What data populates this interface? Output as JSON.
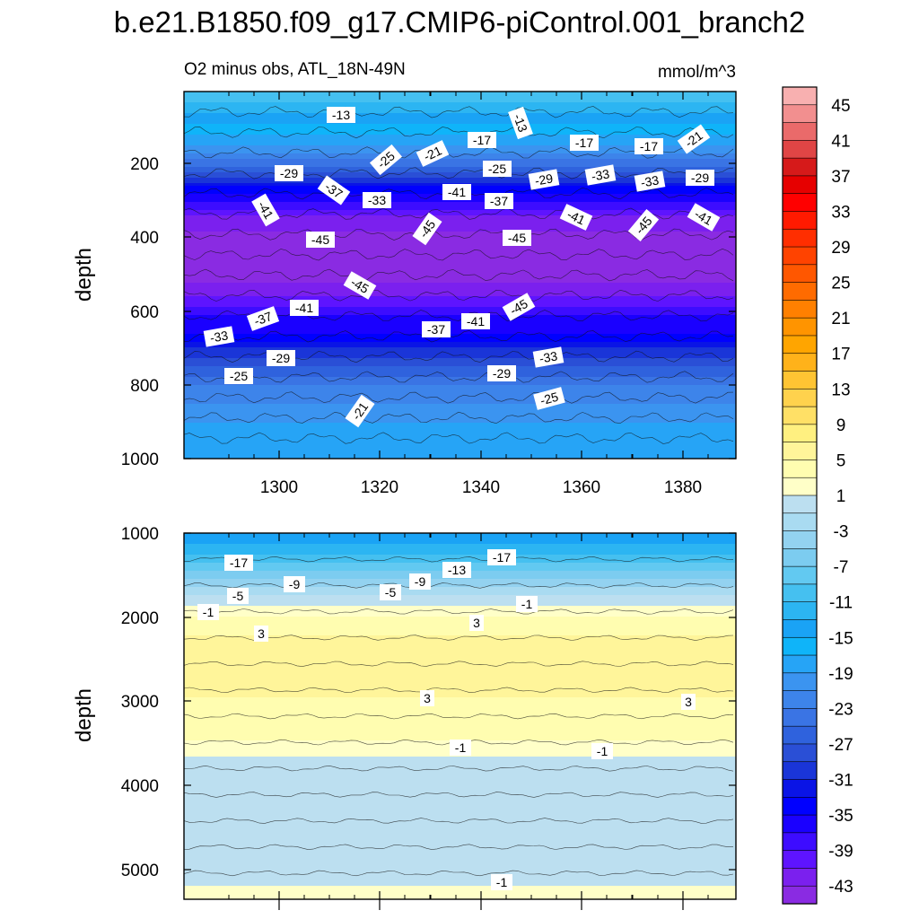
{
  "chart_data": {
    "type": "heatmap",
    "title": "b.e21.B1850.f09_g17.CMIP6-piControl.001_branch2",
    "left_subtitle": "O2 minus obs, ATL_18N-49N",
    "right_subtitle": "mmol/m^3",
    "colorbar": {
      "levels": [
        -47,
        -45,
        -43,
        -41,
        -39,
        -37,
        -35,
        -33,
        -31,
        -29,
        -27,
        -25,
        -23,
        -21,
        -19,
        -17,
        -15,
        -13,
        -11,
        -9,
        -7,
        -5,
        -3,
        -1,
        1,
        3,
        5,
        7,
        9,
        11,
        13,
        15,
        17,
        19,
        21,
        23,
        25,
        27,
        29,
        31,
        33,
        35,
        37,
        39,
        41,
        43,
        45,
        47
      ],
      "colors": [
        "#8a2be2",
        "#7b20ee",
        "#5e14ff",
        "#3d0cff",
        "#1a00ff",
        "#0000ff",
        "#0a14e6",
        "#1a35d8",
        "#2a4fd6",
        "#2f62dd",
        "#3a74e4",
        "#3d84ea",
        "#3b94f0",
        "#26a4f6",
        "#0fb4f9",
        "#1aa3f5",
        "#2cb5f2",
        "#45c0f0",
        "#62c9f1",
        "#7cccf0",
        "#93d2f0",
        "#a9dbf1",
        "#bcdff0",
        "#ffffc8",
        "#fffdb0",
        "#fff59a",
        "#fff080",
        "#ffe066",
        "#ffd24d",
        "#ffc433",
        "#ffb21a",
        "#ffa500",
        "#ff9400",
        "#ff8000",
        "#ff6b00",
        "#ff5700",
        "#ff4300",
        "#ff2e00",
        "#ff1a00",
        "#ff0000",
        "#e60000",
        "#d61a1a",
        "#e04545",
        "#ea6a6a",
        "#f28f8f",
        "#f8b0b0"
      ],
      "tick_labels": [
        "45",
        "41",
        "37",
        "33",
        "29",
        "25",
        "21",
        "17",
        "13",
        "9",
        "5",
        "1",
        "-3",
        "-7",
        "-11",
        "-15",
        "-19",
        "-23",
        "-27",
        "-31",
        "-35",
        "-39",
        "-43"
      ]
    },
    "panels": [
      {
        "name": "upper",
        "ylabel": "depth",
        "ylim": [
          1000,
          0
        ],
        "y_ticks": [
          "200",
          "400",
          "600",
          "800",
          "1000"
        ],
        "xlim": [
          1283,
          1391
        ],
        "x_ticks": [
          "1300",
          "1320",
          "1340",
          "1360",
          "1380"
        ],
        "depth_profile": [
          [
            0,
            -11
          ],
          [
            60,
            -15
          ],
          [
            120,
            -19
          ],
          [
            170,
            -23
          ],
          [
            220,
            -29
          ],
          [
            260,
            -35
          ],
          [
            300,
            -39
          ],
          [
            340,
            -43
          ],
          [
            400,
            -46
          ],
          [
            500,
            -46
          ],
          [
            560,
            -43
          ],
          [
            610,
            -39
          ],
          [
            660,
            -37
          ],
          [
            700,
            -33
          ],
          [
            750,
            -29
          ],
          [
            800,
            -25
          ],
          [
            850,
            -23
          ],
          [
            900,
            -21
          ],
          [
            1000,
            -20
          ]
        ],
        "contour_labels": [
          "-13",
          "-13",
          "-17",
          "-17",
          "-17",
          "-21",
          "-21",
          "-25",
          "-25",
          "-29",
          "-29",
          "-29",
          "-33",
          "-33",
          "-33",
          "-37",
          "-37",
          "-41",
          "-41",
          "-41",
          "-41",
          "-45",
          "-45",
          "-45",
          "-45",
          "-45",
          "-45",
          "-41",
          "-41",
          "-37",
          "-37",
          "-33",
          "-33",
          "-29",
          "-29",
          "-25",
          "-25",
          "-21"
        ]
      },
      {
        "name": "lower",
        "ylabel": "depth",
        "ylim": [
          5350,
          1000
        ],
        "y_ticks": [
          "1000",
          "2000",
          "3000",
          "4000",
          "5000"
        ],
        "xlim": [
          1283,
          1391
        ],
        "x_ticks": [],
        "depth_profile": [
          [
            1000,
            -17
          ],
          [
            1300,
            -12
          ],
          [
            1550,
            -7
          ],
          [
            1750,
            -3
          ],
          [
            1900,
            0
          ],
          [
            2100,
            2
          ],
          [
            2300,
            4
          ],
          [
            2500,
            4
          ],
          [
            2800,
            4
          ],
          [
            3100,
            2
          ],
          [
            3450,
            1
          ],
          [
            3650,
            -1
          ],
          [
            3900,
            -2
          ],
          [
            4400,
            -3
          ],
          [
            4700,
            -3
          ],
          [
            5000,
            -2
          ],
          [
            5200,
            -1
          ],
          [
            5350,
            1
          ]
        ],
        "contour_labels": [
          "-17",
          "-17",
          "-13",
          "-9",
          "-9",
          "-5",
          "-5",
          "-1",
          "-1",
          "3",
          "3",
          "3",
          "3",
          "-1",
          "-1",
          "-1"
        ]
      }
    ]
  }
}
